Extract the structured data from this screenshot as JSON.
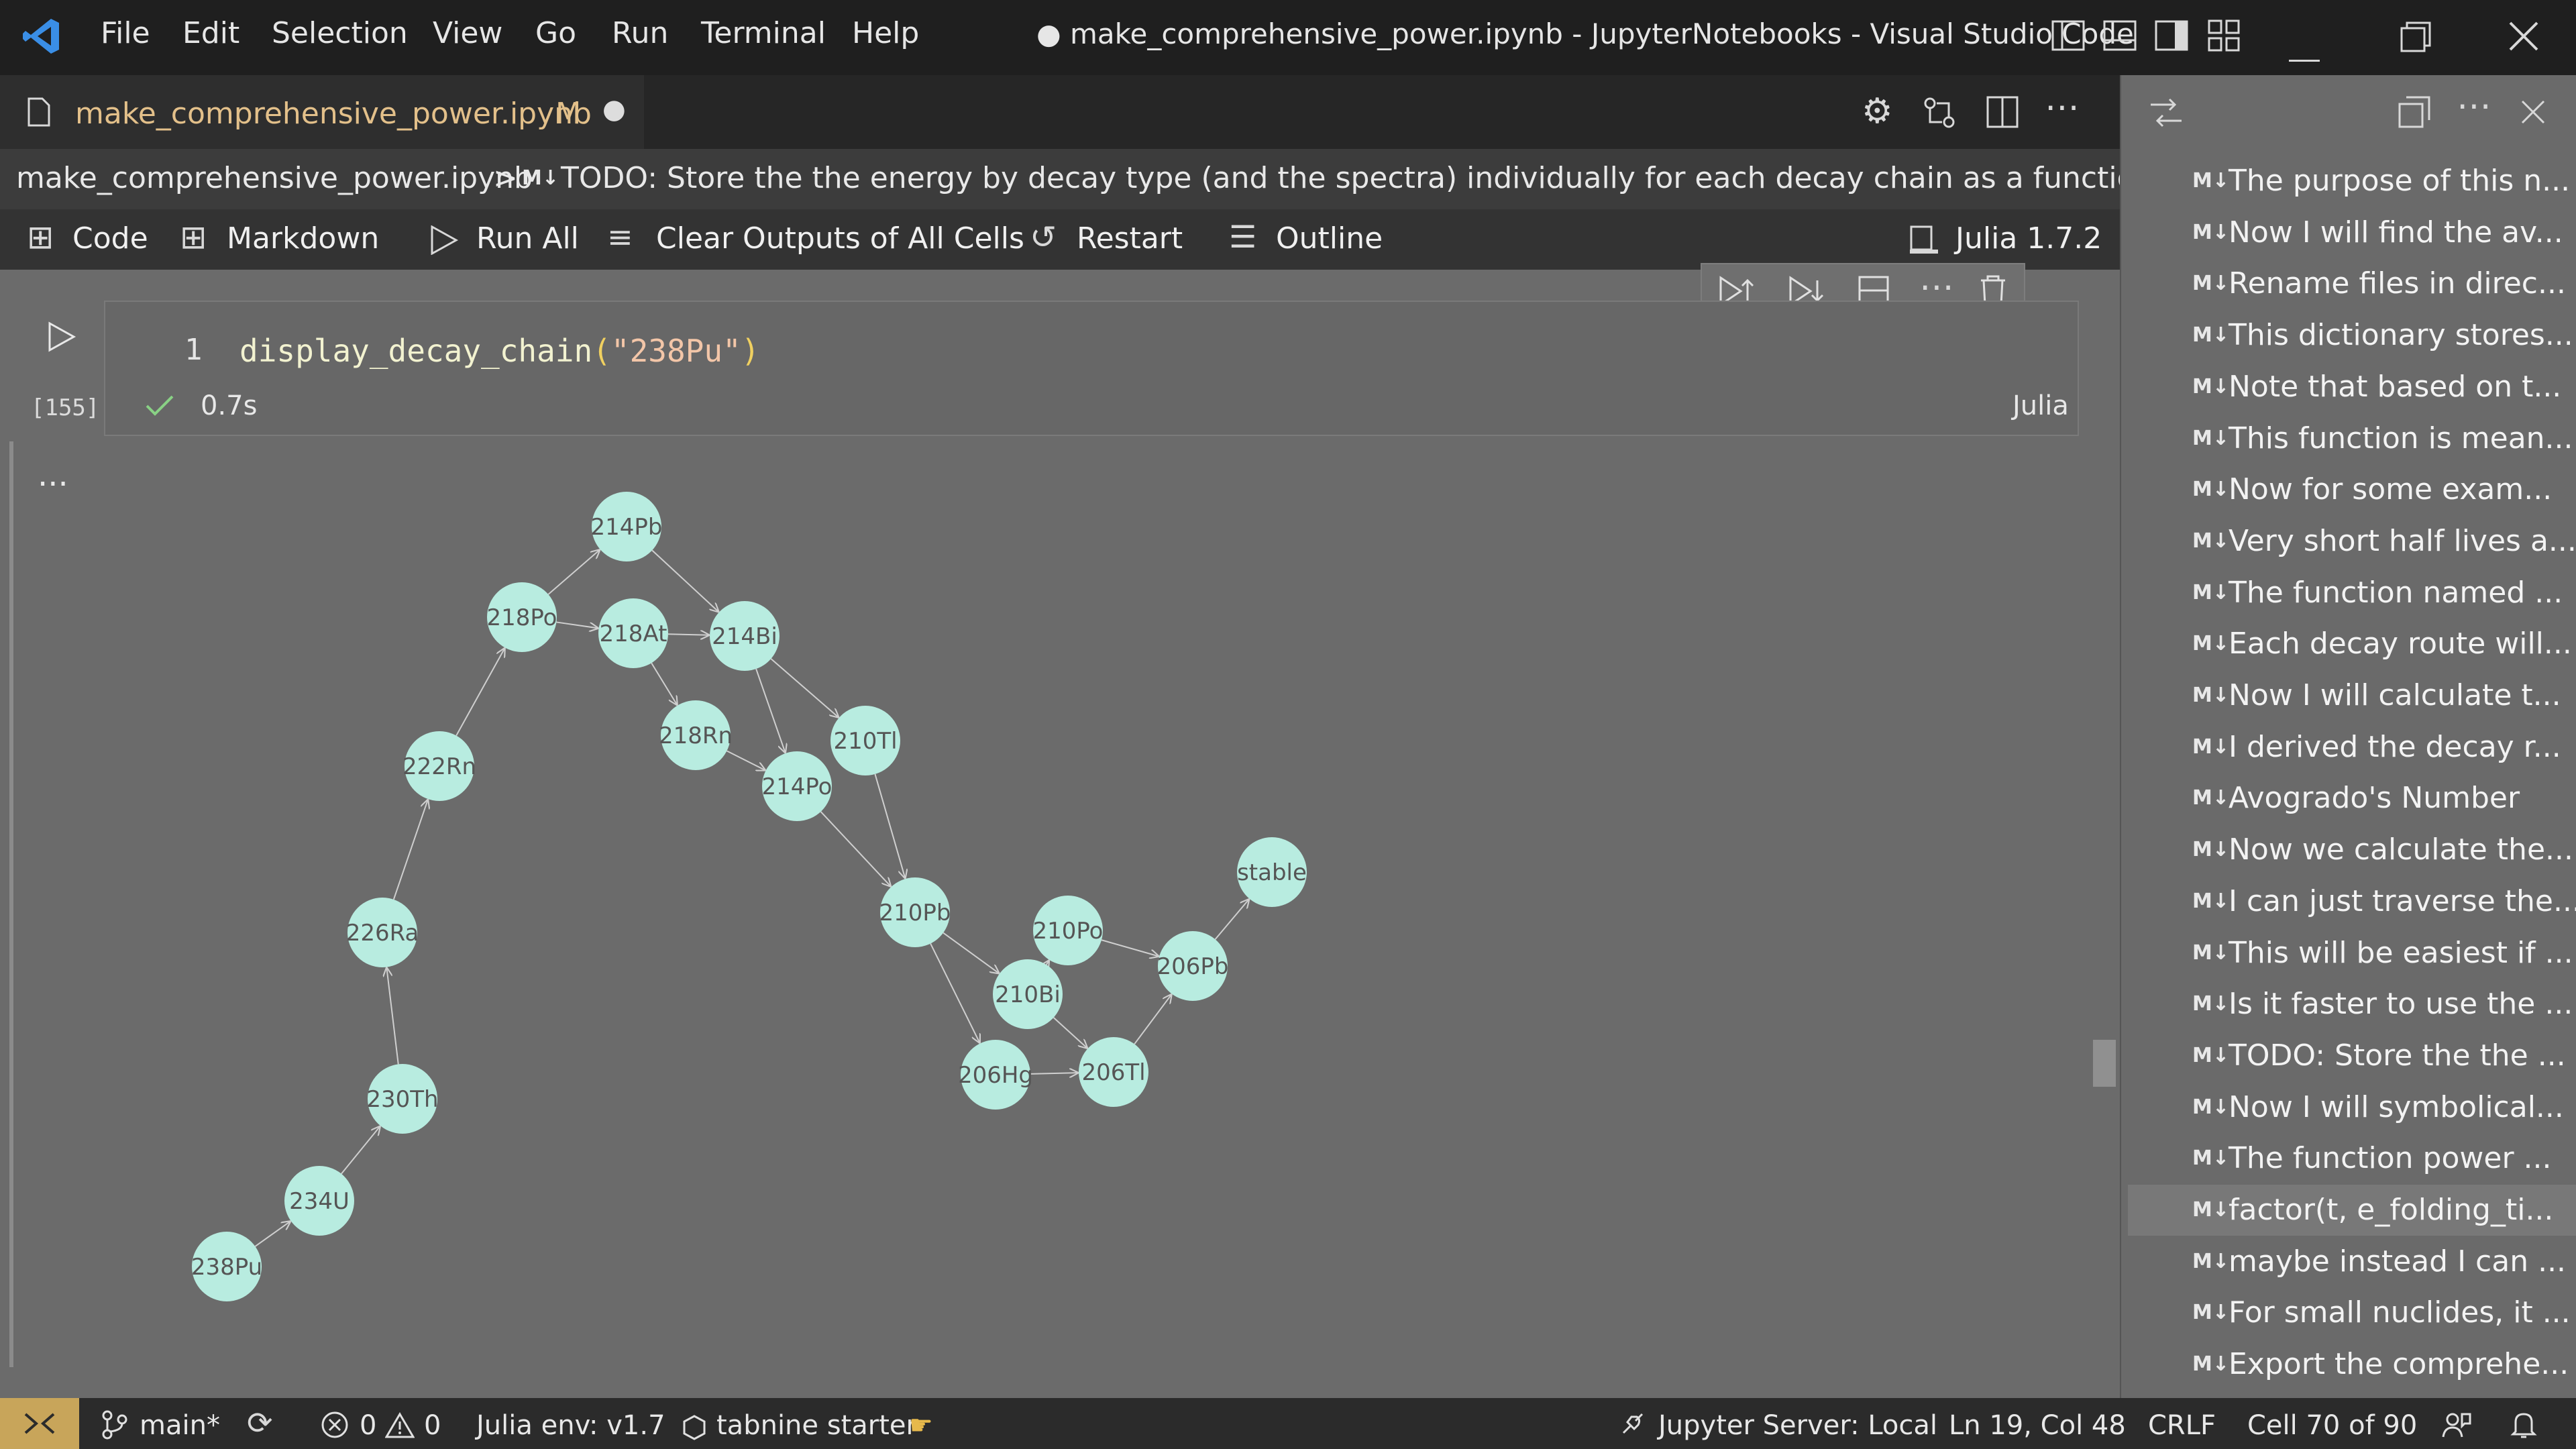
{
  "titlebar": {
    "menus": [
      "File",
      "Edit",
      "Selection",
      "View",
      "Go",
      "Run",
      "Terminal",
      "Help"
    ],
    "window_title": "● make_comprehensive_power.ipynb - JupyterNotebooks - Visual Studio Code"
  },
  "tab": {
    "filename": "make_comprehensive_power.ipynb",
    "badge": "M",
    "dirty": "●"
  },
  "breadcrumb": {
    "file": "make_comprehensive_power.ipynb",
    "sep": ">",
    "md": "M↓",
    "section": "TODO: Store the the energy by decay type (and the spectra) individually for each decay chain as a function of time."
  },
  "toolbar": {
    "code": "Code",
    "markdown": "Markdown",
    "run_all": "Run All",
    "clear_outputs": "Clear Outputs of All Cells",
    "restart": "Restart",
    "outline": "Outline",
    "kernel": "Julia 1.7.2"
  },
  "cell": {
    "line_number": "1",
    "code_func": "display_decay_chain",
    "code_open": "(",
    "code_arg": "\"238Pu\"",
    "code_close": ")",
    "exec_count": "[155]",
    "duration": "0.7s",
    "language": "Julia",
    "output_ellipsis": "..."
  },
  "graph": {
    "node_color": "#b8ece0",
    "edge_color": "#cfcfcf",
    "nodes": [
      {
        "id": "214Pb",
        "label": "214Pb"
      },
      {
        "id": "218Po",
        "label": "218Po"
      },
      {
        "id": "218At",
        "label": "218At"
      },
      {
        "id": "214Bi",
        "label": "214Bi"
      },
      {
        "id": "222Rn",
        "label": "222Rn"
      },
      {
        "id": "218Rn",
        "label": "218Rn"
      },
      {
        "id": "210Tl",
        "label": "210Tl"
      },
      {
        "id": "214Po",
        "label": "214Po"
      },
      {
        "id": "226Ra",
        "label": "226Ra"
      },
      {
        "id": "210Pb",
        "label": "210Pb"
      },
      {
        "id": "210Po",
        "label": "210Po"
      },
      {
        "id": "stable",
        "label": "stable"
      },
      {
        "id": "206Pb",
        "label": "206Pb"
      },
      {
        "id": "210Bi",
        "label": "210Bi"
      },
      {
        "id": "206Hg",
        "label": "206Hg"
      },
      {
        "id": "206Tl",
        "label": "206Tl"
      },
      {
        "id": "230Th",
        "label": "230Th"
      },
      {
        "id": "234U",
        "label": "234U"
      },
      {
        "id": "238Pu",
        "label": "238Pu"
      }
    ],
    "edges": [
      [
        "238Pu",
        "234U"
      ],
      [
        "234U",
        "230Th"
      ],
      [
        "230Th",
        "226Ra"
      ],
      [
        "226Ra",
        "222Rn"
      ],
      [
        "222Rn",
        "218Po"
      ],
      [
        "218Po",
        "214Pb"
      ],
      [
        "218Po",
        "218At"
      ],
      [
        "214Pb",
        "214Bi"
      ],
      [
        "218At",
        "214Bi"
      ],
      [
        "218At",
        "218Rn"
      ],
      [
        "214Bi",
        "214Po"
      ],
      [
        "214Bi",
        "210Tl"
      ],
      [
        "218Rn",
        "214Po"
      ],
      [
        "214Po",
        "210Pb"
      ],
      [
        "210Tl",
        "210Pb"
      ],
      [
        "210Pb",
        "210Bi"
      ],
      [
        "210Pb",
        "206Hg"
      ],
      [
        "210Bi",
        "210Po"
      ],
      [
        "210Bi",
        "206Tl"
      ],
      [
        "210Po",
        "206Pb"
      ],
      [
        "206Hg",
        "206Tl"
      ],
      [
        "206Tl",
        "206Pb"
      ],
      [
        "206Pb",
        "stable"
      ]
    ]
  },
  "outline": {
    "md": "M↓",
    "items": [
      "The purpose of this n...",
      "Now I will find the av...",
      "Rename files in direc...",
      "This dictionary stores...",
      "Note that based on t...",
      "This function is mean...",
      "Now for some exam...",
      "Very short half lives a...",
      "The function named ...",
      "Each decay route will...",
      "Now I will calculate t...",
      "I derived the decay r...",
      "Avogrado's Number",
      "Now we calculate the...",
      "I can just traverse the...",
      "This will be easiest if ...",
      "Is it faster to use the ...",
      "TODO: Store the the ...",
      "Now I will symbolical...",
      "The function power ...",
      "factor(t, e_folding_ti...",
      "maybe instead I can ...",
      "For small nuclides, it ...",
      "Export the comprehe..."
    ],
    "selected_index": 20
  },
  "status": {
    "branch": "main*",
    "errors": "0",
    "warnings": "0",
    "julia_env": "Julia env: v1.7",
    "tabnine": "tabnine starter",
    "jupyter": "Jupyter Server: Local",
    "position": "Ln 19, Col 48",
    "eol": "CRLF",
    "cell": "Cell 70 of 90"
  }
}
